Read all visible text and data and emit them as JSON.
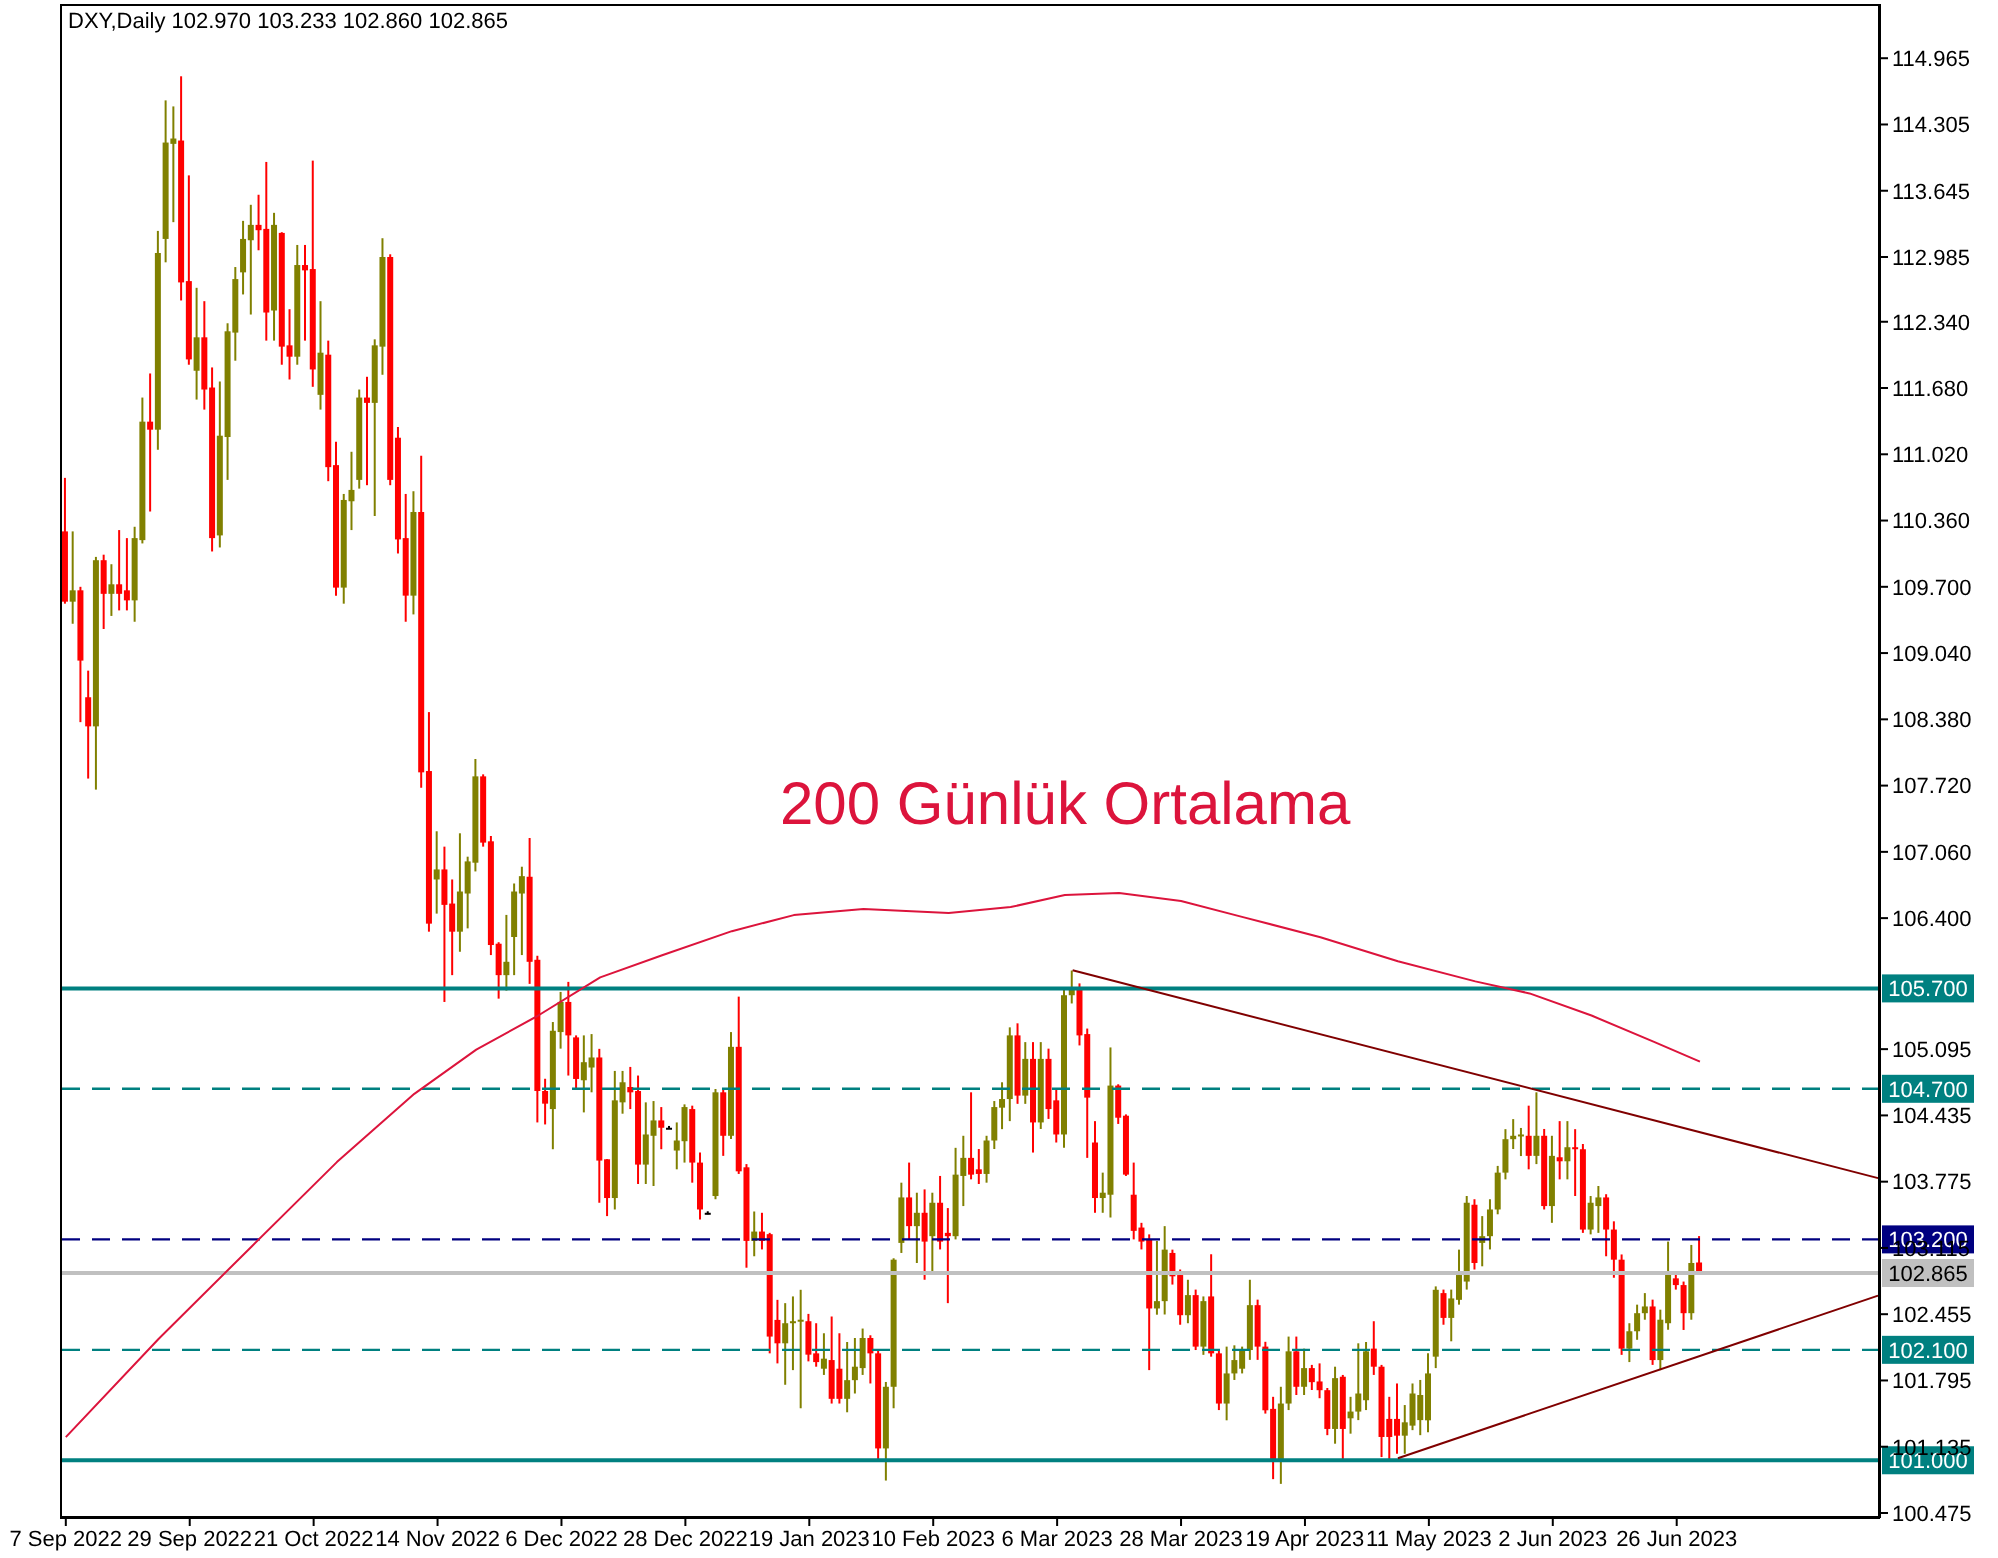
{
  "chart_data": {
    "type": "candlestick",
    "title": "DXY,Daily 102.970 103.233 102.860 102.865",
    "categories": [
      "7 Sep 2022",
      null,
      null,
      null,
      null,
      null,
      null,
      null,
      null,
      null,
      null,
      null,
      null,
      null,
      null,
      null,
      "29 Sep 2022",
      null,
      null,
      null,
      null,
      null,
      null,
      null,
      null,
      null,
      null,
      null,
      null,
      null,
      null,
      null,
      "21 Oct 2022",
      null,
      null,
      null,
      null,
      null,
      null,
      null,
      null,
      null,
      null,
      null,
      null,
      null,
      null,
      null,
      "14 Nov 2022",
      null,
      null,
      null,
      null,
      null,
      null,
      null,
      null,
      null,
      null,
      null,
      null,
      null,
      null,
      null,
      "6 Dec 2022",
      null,
      null,
      null,
      null,
      null,
      null,
      null,
      null,
      null,
      null,
      null,
      null,
      null,
      null,
      null,
      "28 Dec 2022",
      null,
      null,
      null,
      null,
      null,
      null,
      null,
      null,
      null,
      null,
      null,
      null,
      null,
      null,
      null,
      "19 Jan 2023",
      null,
      null,
      null,
      null,
      null,
      null,
      null,
      null,
      null,
      null,
      null,
      null,
      null,
      null,
      null,
      "10 Feb 2023",
      null,
      null,
      null,
      null,
      null,
      null,
      null,
      null,
      null,
      null,
      null,
      null,
      null,
      null,
      null,
      "6 Mar 2023",
      null,
      null,
      null,
      null,
      null,
      null,
      null,
      null,
      null,
      null,
      null,
      null,
      null,
      null,
      null,
      "28 Mar 2023",
      null,
      null,
      null,
      null,
      null,
      null,
      null,
      null,
      null,
      null,
      null,
      null,
      null,
      null,
      null,
      "19 Apr 2023",
      null,
      null,
      null,
      null,
      null,
      null,
      null,
      null,
      null,
      null,
      null,
      null,
      null,
      null,
      null,
      "11 May 2023",
      null,
      null,
      null,
      null,
      null,
      null,
      null,
      null,
      null,
      null,
      null,
      null,
      null,
      null,
      null,
      "2 Jun 2023",
      null,
      null,
      null,
      null,
      null,
      null,
      null,
      null,
      null,
      null,
      null,
      null,
      null,
      null,
      null,
      "26 Jun 2023",
      null,
      null,
      null,
      null,
      null,
      null,
      null,
      null,
      null,
      null,
      null,
      null,
      null,
      null,
      null,
      null,
      null,
      null,
      null,
      null,
      null,
      null,
      null,
      null,
      null,
      null
    ],
    "ohlc": [
      [
        110.252,
        110.785,
        109.532,
        109.552
      ],
      [
        109.552,
        110.252,
        109.332,
        109.665
      ],
      [
        109.665,
        109.7,
        108.352,
        108.965
      ],
      [
        108.6,
        108.865,
        107.79,
        108.31
      ],
      [
        108.31,
        109.998,
        107.68,
        109.965
      ],
      [
        109.965,
        110.02,
        109.28,
        109.63
      ],
      [
        109.63,
        109.925,
        109.41,
        109.725
      ],
      [
        109.725,
        110.265,
        109.465,
        109.63
      ],
      [
        109.665,
        110.185,
        109.465,
        109.565
      ],
      [
        109.565,
        110.298,
        109.352,
        110.185
      ],
      [
        110.165,
        111.585,
        110.132,
        111.345
      ],
      [
        111.345,
        111.825,
        110.45,
        111.265
      ],
      [
        111.265,
        113.245,
        111.065,
        113.025
      ],
      [
        113.165,
        114.545,
        112.932,
        114.125
      ],
      [
        114.112,
        114.485,
        113.332,
        114.165
      ],
      [
        114.145,
        114.785,
        112.552,
        112.732
      ],
      [
        112.745,
        113.798,
        111.912,
        111.965
      ],
      [
        111.852,
        112.678,
        111.565,
        112.185
      ],
      [
        112.185,
        112.545,
        111.465,
        111.665
      ],
      [
        111.685,
        111.885,
        110.052,
        110.185
      ],
      [
        110.212,
        111.745,
        110.092,
        111.205
      ],
      [
        111.192,
        112.325,
        110.765,
        112.245
      ],
      [
        112.232,
        112.885,
        111.952,
        112.765
      ],
      [
        112.832,
        113.345,
        112.612,
        113.165
      ],
      [
        113.152,
        113.505,
        112.412,
        113.305
      ],
      [
        113.305,
        113.605,
        113.052,
        113.252
      ],
      [
        113.265,
        113.932,
        112.152,
        112.432
      ],
      [
        112.452,
        113.425,
        112.152,
        113.305
      ],
      [
        113.225,
        113.232,
        111.912,
        112.092
      ],
      [
        112.105,
        112.465,
        111.765,
        111.992
      ],
      [
        111.992,
        113.105,
        111.912,
        112.905
      ],
      [
        112.905,
        113.105,
        112.152,
        112.852
      ],
      [
        112.865,
        113.945,
        111.692,
        111.865
      ],
      [
        111.612,
        112.545,
        111.465,
        112.032
      ],
      [
        112.012,
        112.152,
        110.752,
        110.892
      ],
      [
        110.912,
        111.145,
        109.612,
        109.692
      ],
      [
        109.692,
        110.625,
        109.532,
        110.565
      ],
      [
        110.552,
        111.045,
        110.265,
        110.665
      ],
      [
        110.765,
        111.665,
        110.678,
        111.585
      ],
      [
        111.585,
        111.792,
        110.712,
        111.532
      ],
      [
        111.532,
        112.165,
        110.405,
        112.105
      ],
      [
        112.092,
        113.172,
        111.812,
        112.985
      ],
      [
        112.985,
        113.012,
        110.712,
        110.765
      ],
      [
        111.185,
        111.292,
        110.032,
        110.172
      ],
      [
        110.185,
        110.625,
        109.352,
        109.612
      ],
      [
        109.612,
        110.652,
        109.425,
        110.445
      ],
      [
        110.445,
        111.005,
        107.698,
        107.852
      ],
      [
        107.865,
        108.452,
        106.265,
        106.345
      ],
      [
        106.785,
        107.265,
        106.445,
        106.885
      ],
      [
        106.885,
        107.112,
        105.565,
        106.532
      ],
      [
        106.545,
        106.785,
        105.832,
        106.265
      ],
      [
        106.265,
        107.245,
        106.065,
        106.665
      ],
      [
        106.645,
        107.012,
        106.298,
        106.965
      ],
      [
        106.952,
        107.985,
        106.865,
        107.812
      ],
      [
        107.812,
        107.832,
        107.112,
        107.152
      ],
      [
        107.165,
        107.218,
        106.032,
        106.132
      ],
      [
        106.145,
        106.16,
        105.598,
        105.832
      ],
      [
        105.832,
        106.432,
        105.678,
        105.965
      ],
      [
        106.212,
        106.745,
        105.832,
        106.665
      ],
      [
        106.645,
        106.912,
        106.032,
        106.818
      ],
      [
        106.812,
        107.198,
        105.745,
        105.965
      ],
      [
        105.985,
        106.025,
        104.365,
        104.678
      ],
      [
        104.678,
        104.8,
        104.345,
        104.552
      ],
      [
        104.498,
        105.365,
        104.098,
        105.278
      ],
      [
        105.265,
        105.665,
        105.1,
        105.565
      ],
      [
        105.565,
        105.765,
        104.832,
        105.232
      ],
      [
        105.212,
        105.232,
        104.698,
        104.798
      ],
      [
        104.785,
        105.232,
        104.465,
        104.965
      ],
      [
        104.912,
        105.245,
        104.665,
        105.012
      ],
      [
        105.012,
        105.098,
        103.565,
        103.985
      ],
      [
        103.998,
        104.0,
        103.432,
        103.612
      ],
      [
        103.612,
        104.878,
        103.498,
        104.585
      ],
      [
        104.565,
        104.878,
        104.452,
        104.765
      ],
      [
        104.718,
        104.918,
        104.498,
        104.665
      ],
      [
        104.678,
        104.832,
        103.752,
        103.945
      ],
      [
        103.945,
        104.565,
        103.752,
        104.245
      ],
      [
        104.232,
        104.578,
        103.732,
        104.385
      ],
      [
        104.385,
        104.518,
        104.098,
        104.312
      ],
      [
        104.312,
        104.33,
        104.3,
        104.312
      ],
      [
        104.085,
        104.365,
        103.898,
        104.185
      ],
      [
        104.178,
        104.545,
        103.965,
        104.518
      ],
      [
        104.498,
        104.532,
        103.765,
        103.965
      ],
      [
        103.965,
        104.065,
        103.398,
        103.498
      ],
      [
        103.465,
        103.48,
        103.45,
        103.465
      ],
      [
        103.632,
        104.698,
        103.6,
        104.665
      ],
      [
        104.665,
        104.698,
        104.032,
        104.232
      ],
      [
        104.232,
        105.265,
        104.2,
        105.118
      ],
      [
        105.118,
        105.618,
        103.852,
        103.878
      ],
      [
        103.918,
        103.95,
        102.918,
        103.185
      ],
      [
        103.185,
        103.478,
        103.032,
        103.278
      ],
      [
        103.278,
        103.465,
        103.1,
        103.185
      ],
      [
        103.252,
        103.265,
        102.065,
        102.232
      ],
      [
        102.398,
        102.598,
        101.965,
        102.165
      ],
      [
        102.165,
        102.565,
        101.752,
        102.365
      ],
      [
        102.365,
        102.632,
        101.898,
        102.385
      ],
      [
        102.385,
        102.698,
        101.518,
        102.4
      ],
      [
        102.385,
        102.458,
        101.985,
        102.052
      ],
      [
        102.065,
        102.365,
        101.932,
        101.978
      ],
      [
        101.912,
        102.265,
        101.85,
        102.012
      ],
      [
        101.998,
        102.432,
        101.565,
        101.612
      ],
      [
        101.912,
        102.265,
        101.565,
        101.612
      ],
      [
        101.612,
        102.178,
        101.478,
        101.798
      ],
      [
        101.798,
        102.218,
        101.665,
        101.932
      ],
      [
        101.918,
        102.312,
        101.85,
        102.218
      ],
      [
        102.218,
        102.245,
        101.765,
        102.065
      ],
      [
        102.065,
        102.1,
        101.012,
        101.118
      ],
      [
        101.118,
        101.78,
        100.798,
        101.732
      ],
      [
        101.732,
        103.012,
        101.518,
        102.998
      ],
      [
        103.165,
        103.765,
        103.065,
        103.618
      ],
      [
        103.618,
        103.965,
        103.2,
        103.332
      ],
      [
        103.332,
        103.665,
        102.965,
        103.465
      ],
      [
        103.465,
        103.698,
        102.798,
        103.178
      ],
      [
        103.232,
        103.665,
        102.865,
        103.565
      ],
      [
        103.565,
        103.832,
        103.1,
        103.178
      ],
      [
        103.265,
        103.512,
        102.565,
        103.232
      ],
      [
        103.232,
        104.112,
        103.2,
        103.845
      ],
      [
        103.832,
        104.232,
        103.532,
        104.012
      ],
      [
        104.012,
        104.665,
        103.798,
        103.845
      ],
      [
        103.898,
        104.1,
        103.752,
        103.852
      ],
      [
        103.852,
        104.232,
        103.765,
        104.185
      ],
      [
        104.185,
        104.578,
        104.1,
        104.518
      ],
      [
        104.512,
        104.765,
        104.298,
        104.598
      ],
      [
        104.598,
        105.312,
        104.378,
        105.232
      ],
      [
        105.232,
        105.352,
        104.55,
        104.632
      ],
      [
        104.632,
        105.165,
        104.55,
        104.998
      ],
      [
        104.998,
        105.165,
        104.065,
        104.365
      ],
      [
        104.365,
        105.165,
        104.3,
        104.998
      ],
      [
        104.998,
        105.1,
        104.4,
        104.498
      ],
      [
        104.585,
        104.7,
        104.165,
        104.245
      ],
      [
        104.245,
        105.698,
        104.112,
        105.632
      ],
      [
        105.632,
        105.878,
        105.55,
        105.712
      ],
      [
        105.698,
        105.75,
        105.132,
        105.232
      ],
      [
        105.245,
        105.3,
        104.012,
        104.612
      ],
      [
        104.165,
        104.378,
        103.465,
        103.612
      ],
      [
        103.612,
        103.865,
        103.465,
        103.665
      ],
      [
        103.645,
        105.112,
        103.418,
        104.732
      ],
      [
        104.732,
        104.745,
        104.35,
        104.412
      ],
      [
        104.432,
        104.445,
        103.832,
        103.845
      ],
      [
        103.645,
        103.965,
        103.2,
        103.285
      ],
      [
        103.318,
        103.365,
        103.1,
        103.178
      ],
      [
        103.198,
        103.25,
        101.898,
        102.512
      ],
      [
        102.512,
        103.185,
        102.45,
        102.585
      ],
      [
        102.585,
        103.332,
        102.452,
        103.098
      ],
      [
        103.065,
        103.098,
        102.75,
        102.832
      ],
      [
        102.845,
        102.9,
        102.35,
        102.445
      ],
      [
        102.445,
        102.798,
        102.365,
        102.645
      ],
      [
        102.645,
        102.7,
        102.098,
        102.132
      ],
      [
        102.132,
        102.632,
        102.05,
        102.585
      ],
      [
        102.632,
        103.052,
        102.032,
        102.065
      ],
      [
        102.065,
        102.1,
        101.5,
        101.565
      ],
      [
        101.565,
        102.132,
        101.398,
        101.865
      ],
      [
        101.865,
        102.145,
        101.8,
        101.998
      ],
      [
        101.912,
        102.132,
        101.865,
        102.098
      ],
      [
        102.098,
        102.798,
        102.0,
        102.545
      ],
      [
        102.545,
        102.6,
        102.0,
        102.132
      ],
      [
        102.132,
        102.18,
        101.465,
        101.498
      ],
      [
        101.512,
        101.632,
        100.812,
        100.998
      ],
      [
        100.998,
        101.732,
        100.765,
        101.565
      ],
      [
        101.565,
        102.232,
        101.5,
        102.085
      ],
      [
        102.085,
        102.232,
        101.65,
        101.732
      ],
      [
        101.732,
        102.112,
        101.65,
        101.918
      ],
      [
        101.918,
        101.95,
        101.7,
        101.778
      ],
      [
        101.785,
        101.965,
        101.618,
        101.698
      ],
      [
        101.698,
        101.72,
        101.25,
        101.312
      ],
      [
        101.312,
        101.932,
        101.165,
        101.818
      ],
      [
        101.832,
        101.85,
        100.998,
        101.312
      ],
      [
        101.418,
        101.632,
        101.265,
        101.485
      ],
      [
        101.485,
        102.165,
        101.4,
        101.665
      ],
      [
        101.598,
        102.178,
        101.5,
        102.085
      ],
      [
        102.112,
        102.385,
        101.85,
        101.932
      ],
      [
        101.932,
        101.95,
        101.032,
        101.232
      ],
      [
        101.412,
        101.632,
        100.998,
        101.232
      ],
      [
        101.412,
        101.765,
        101.065,
        101.245
      ],
      [
        101.245,
        101.55,
        101.065,
        101.378
      ],
      [
        101.345,
        101.765,
        101.3,
        101.665
      ],
      [
        101.4,
        101.8,
        101.25,
        101.65
      ],
      [
        101.398,
        102.065,
        101.278,
        101.865
      ],
      [
        102.032,
        102.732,
        101.918,
        102.698
      ],
      [
        102.665,
        102.7,
        102.35,
        102.418
      ],
      [
        102.418,
        102.7,
        102.185,
        102.612
      ],
      [
        102.598,
        103.098,
        102.55,
        102.845
      ],
      [
        102.78,
        103.632,
        102.7,
        103.565
      ],
      [
        103.545,
        103.6,
        102.9,
        102.965
      ],
      [
        103.165,
        103.432,
        102.932,
        103.232
      ],
      [
        103.232,
        103.6,
        103.1,
        103.498
      ],
      [
        103.498,
        103.932,
        103.45,
        103.865
      ],
      [
        103.865,
        104.298,
        103.798,
        104.198
      ],
      [
        104.198,
        104.398,
        104.1,
        104.232
      ],
      [
        104.232,
        104.31,
        104.03,
        104.245
      ],
      [
        104.232,
        104.532,
        103.898,
        104.032
      ],
      [
        104.032,
        104.665,
        103.95,
        104.232
      ],
      [
        104.232,
        104.3,
        103.498,
        103.532
      ],
      [
        103.532,
        104.232,
        103.365,
        104.032
      ],
      [
        104.018,
        104.378,
        103.798,
        103.978
      ],
      [
        103.978,
        104.378,
        103.798,
        104.118
      ],
      [
        104.118,
        104.298,
        103.632,
        104.098
      ],
      [
        104.098,
        104.15,
        103.265,
        103.298
      ],
      [
        103.298,
        103.632,
        103.25,
        103.565
      ],
      [
        103.532,
        103.732,
        103.265,
        103.618
      ],
      [
        103.618,
        103.65,
        103.032,
        103.298
      ],
      [
        103.298,
        103.38,
        102.818,
        102.998
      ],
      [
        102.998,
        103.05,
        102.05,
        102.112
      ],
      [
        102.112,
        102.365,
        101.978,
        102.285
      ],
      [
        102.285,
        102.55,
        102.2,
        102.465
      ],
      [
        102.465,
        102.665,
        102.4,
        102.532
      ],
      [
        102.532,
        102.6,
        101.95,
        101.998
      ],
      [
        101.998,
        102.5,
        101.898,
        102.4
      ],
      [
        102.365,
        103.178,
        102.3,
        102.865
      ],
      [
        102.812,
        102.865,
        102.7,
        102.745
      ],
      [
        102.745,
        102.78,
        102.298,
        102.465
      ],
      [
        102.465,
        103.145,
        102.4,
        102.965
      ],
      [
        102.97,
        103.233,
        102.86,
        102.865
      ],
      null,
      null,
      null,
      null,
      null,
      null,
      null,
      null,
      null,
      null,
      null,
      null,
      null,
      null,
      null,
      null,
      null,
      null,
      null,
      null,
      null,
      null,
      null
    ],
    "colors": [
      "#ff0000",
      "#808000",
      "#ff0000",
      "#ff0000",
      "#808000",
      "#ff0000",
      "#808000",
      "#ff0000",
      "#ff0000",
      "#808000",
      "#808000",
      "#ff0000",
      "#808000",
      "#808000",
      "#808000",
      "#ff0000",
      "#ff0000",
      "#808000",
      "#ff0000",
      "#ff0000",
      "#808000",
      "#808000",
      "#808000",
      "#808000",
      "#808000",
      "#ff0000",
      "#ff0000",
      "#808000",
      "#ff0000",
      "#ff0000",
      "#808000",
      "#ff0000",
      "#ff0000",
      "#808000",
      "#ff0000",
      "#ff0000",
      "#808000",
      "#808000",
      "#808000",
      "#ff0000",
      "#808000",
      "#808000",
      "#ff0000",
      "#ff0000",
      "#ff0000",
      "#808000",
      "#ff0000",
      "#ff0000",
      "#808000",
      "#ff0000",
      "#ff0000",
      "#808000",
      "#808000",
      "#808000",
      "#ff0000",
      "#ff0000",
      "#ff0000",
      "#808000",
      "#808000",
      "#808000",
      "#ff0000",
      "#ff0000",
      "#ff0000",
      "#808000",
      "#808000",
      "#ff0000",
      "#ff0000",
      "#808000",
      "#808000",
      "#ff0000",
      "#ff0000",
      "#808000",
      "#808000",
      "#ff0000",
      "#ff0000",
      "#808000",
      "#808000",
      "#ff0000",
      "#000000",
      "#808000",
      "#808000",
      "#ff0000",
      "#ff0000",
      "#000000",
      "#808000",
      "#ff0000",
      "#808000",
      "#ff0000",
      "#ff0000",
      "#808000",
      "#ff0000",
      "#ff0000",
      "#ff0000",
      "#808000",
      "#808000",
      "#808000",
      "#ff0000",
      "#ff0000",
      "#808000",
      "#ff0000",
      "#ff0000",
      "#808000",
      "#808000",
      "#808000",
      "#ff0000",
      "#ff0000",
      "#808000",
      "#808000",
      "#808000",
      "#ff0000",
      "#808000",
      "#ff0000",
      "#808000",
      "#ff0000",
      "#ff0000",
      "#808000",
      "#808000",
      "#ff0000",
      "#ff0000",
      "#808000",
      "#808000",
      "#808000",
      "#808000",
      "#ff0000",
      "#808000",
      "#ff0000",
      "#808000",
      "#ff0000",
      "#ff0000",
      "#808000",
      "#808000",
      "#ff0000",
      "#ff0000",
      "#ff0000",
      "#808000",
      "#808000",
      "#ff0000",
      "#ff0000",
      "#ff0000",
      "#ff0000",
      "#ff0000",
      "#808000",
      "#808000",
      "#ff0000",
      "#ff0000",
      "#808000",
      "#ff0000",
      "#808000",
      "#ff0000",
      "#ff0000",
      "#808000",
      "#808000",
      "#808000",
      "#808000",
      "#ff0000",
      "#ff0000",
      "#ff0000",
      "#808000",
      "#808000",
      "#ff0000",
      "#808000",
      "#ff0000",
      "#ff0000",
      "#ff0000",
      "#808000",
      "#ff0000",
      "#808000",
      "#808000",
      "#808000",
      "#ff0000",
      "#ff0000",
      "#ff0000",
      "#ff0000",
      "#808000",
      "#808000",
      "#808000",
      "#808000",
      "#808000",
      "#ff0000",
      "#808000",
      "#808000",
      "#808000",
      "#ff0000",
      "#808000",
      "#808000",
      "#808000",
      "#808000",
      "#808000",
      "#808000",
      "#ff0000",
      "#808000",
      "#ff0000",
      "#808000",
      "#ff0000",
      "#808000",
      "#ff0000",
      "#ff0000",
      "#808000",
      "#808000",
      "#ff0000",
      "#ff0000",
      "#ff0000",
      "#808000",
      "#808000",
      "#808000",
      "#ff0000",
      "#808000",
      "#808000",
      "#ff0000",
      "#ff0000",
      "#808000",
      "#ff0000",
      null,
      null,
      null,
      null,
      null,
      null,
      null,
      null,
      null,
      null,
      null,
      null,
      null,
      null,
      null,
      null,
      null,
      null,
      null,
      null,
      null,
      null,
      null
    ],
    "series": [
      {
        "type": "line",
        "name": "200 Günlük Ortalama",
        "color": "#dc143c",
        "values": [
          101.23,
          null,
          null,
          null,
          null,
          null,
          null,
          null,
          null,
          null,
          null,
          null,
          102.21,
          null,
          null,
          null,
          null,
          null,
          null,
          null,
          null,
          null,
          null,
          null,
          103.13,
          null,
          null,
          null,
          null,
          null,
          null,
          null,
          null,
          null,
          null,
          103.97,
          null,
          null,
          null,
          null,
          null,
          null,
          null,
          null,
          null,
          104.65,
          null,
          null,
          null,
          null,
          null,
          null,
          null,
          105.09,
          null,
          null,
          null,
          null,
          null,
          null,
          null,
          105.43,
          null,
          null,
          null,
          null,
          null,
          null,
          null,
          105.81,
          null,
          null,
          null,
          null,
          null,
          null,
          null,
          106.03,
          null,
          null,
          null,
          null,
          null,
          null,
          null,
          null,
          106.27,
          null,
          null,
          null,
          null,
          null,
          null,
          null,
          106.43,
          null,
          null,
          null,
          null,
          null,
          null,
          null,
          null,
          106.49,
          null,
          null,
          null,
          null,
          null,
          null,
          null,
          null,
          null,
          null,
          106.45,
          null,
          null,
          null,
          null,
          null,
          null,
          null,
          106.51,
          null,
          null,
          null,
          null,
          null,
          null,
          106.63,
          null,
          null,
          null,
          null,
          null,
          null,
          106.65,
          null,
          null,
          null,
          null,
          null,
          null,
          null,
          106.57,
          null,
          null,
          null,
          null,
          null,
          null,
          null,
          106.41,
          null,
          null,
          null,
          null,
          null,
          null,
          null,
          null,
          null,
          106.21,
          null,
          null,
          null,
          null,
          null,
          null,
          null,
          null,
          null,
          105.97,
          null,
          null,
          null,
          null,
          null,
          null,
          null,
          null,
          null,
          105.77,
          null,
          null,
          null,
          null,
          null,
          null,
          105.65,
          null,
          null,
          null,
          null,
          null,
          null,
          null,
          105.43,
          null,
          null,
          null,
          null,
          null,
          null,
          null,
          105.17,
          null,
          null,
          null,
          null,
          null,
          104.97,
          null,
          null,
          null,
          null,
          null,
          null,
          null,
          null,
          null,
          null,
          null,
          null,
          null,
          null,
          null,
          null,
          null,
          null,
          null,
          null,
          null,
          null,
          null
        ]
      },
      {
        "type": "line",
        "color": "#800000",
        "values": [
          null,
          null,
          null,
          null,
          null,
          null,
          null,
          null,
          null,
          null,
          null,
          null,
          null,
          null,
          null,
          null,
          null,
          null,
          null,
          null,
          null,
          null,
          null,
          null,
          null,
          null,
          null,
          null,
          null,
          null,
          null,
          null,
          null,
          null,
          null,
          null,
          null,
          null,
          null,
          null,
          null,
          null,
          null,
          null,
          null,
          null,
          null,
          null,
          null,
          null,
          null,
          null,
          null,
          null,
          null,
          null,
          null,
          null,
          null,
          null,
          null,
          null,
          null,
          null,
          null,
          null,
          null,
          null,
          null,
          null,
          null,
          null,
          null,
          null,
          null,
          null,
          null,
          null,
          null,
          null,
          null,
          null,
          null,
          null,
          null,
          null,
          null,
          null,
          null,
          null,
          null,
          null,
          null,
          null,
          null,
          null,
          null,
          null,
          null,
          null,
          null,
          null,
          null,
          null,
          null,
          null,
          null,
          null,
          null,
          null,
          null,
          null,
          null,
          null,
          null,
          null,
          null,
          null,
          null,
          null,
          null,
          null,
          null,
          null,
          null,
          null,
          null,
          null,
          null,
          null,
          105.88,
          null,
          null,
          null,
          null,
          null,
          null,
          null,
          null,
          null,
          null,
          null,
          null,
          null,
          null,
          null,
          null,
          null,
          null,
          null,
          null,
          null,
          null,
          null,
          null,
          null,
          null,
          null,
          null,
          null,
          null,
          null,
          null,
          null,
          null,
          null,
          null,
          null,
          null,
          null,
          null,
          null,
          null,
          null,
          null,
          null,
          null,
          null,
          null,
          null,
          null,
          null,
          null,
          null,
          null,
          null,
          null,
          null,
          null,
          null,
          null,
          null,
          null,
          null,
          null,
          null,
          null,
          null,
          null,
          null,
          null,
          null,
          null,
          null,
          null,
          null,
          null,
          null,
          null,
          null,
          null,
          null,
          null,
          null,
          null,
          null,
          null,
          null,
          null,
          null,
          null,
          null,
          null,
          null,
          null,
          null,
          null,
          null,
          null,
          null,
          null,
          null,
          null,
          null,
          103.81
        ]
      },
      {
        "type": "line",
        "color": "#800000",
        "values": [
          null,
          null,
          null,
          null,
          null,
          null,
          null,
          null,
          null,
          null,
          null,
          null,
          null,
          null,
          null,
          null,
          null,
          null,
          null,
          null,
          null,
          null,
          null,
          null,
          null,
          null,
          null,
          null,
          null,
          null,
          null,
          null,
          null,
          null,
          null,
          null,
          null,
          null,
          null,
          null,
          null,
          null,
          null,
          null,
          null,
          null,
          null,
          null,
          null,
          null,
          null,
          null,
          null,
          null,
          null,
          null,
          null,
          null,
          null,
          null,
          null,
          null,
          null,
          null,
          null,
          null,
          null,
          null,
          null,
          null,
          null,
          null,
          null,
          null,
          null,
          null,
          null,
          null,
          null,
          null,
          null,
          null,
          null,
          null,
          null,
          null,
          null,
          null,
          null,
          null,
          null,
          null,
          null,
          null,
          null,
          null,
          null,
          null,
          null,
          null,
          null,
          null,
          null,
          null,
          null,
          null,
          null,
          null,
          null,
          null,
          null,
          null,
          null,
          null,
          null,
          null,
          null,
          null,
          null,
          null,
          null,
          null,
          null,
          null,
          null,
          null,
          null,
          null,
          null,
          null,
          null,
          null,
          null,
          null,
          null,
          null,
          null,
          null,
          null,
          null,
          null,
          null,
          null,
          null,
          null,
          null,
          null,
          null,
          null,
          null,
          null,
          null,
          null,
          null,
          null,
          null,
          null,
          null,
          null,
          null,
          null,
          null,
          null,
          null,
          null,
          null,
          null,
          null,
          null,
          null,
          null,
          null,
          101.02,
          null,
          null,
          null,
          null,
          null,
          null,
          null,
          null,
          null,
          null,
          null,
          null,
          null,
          null,
          null,
          null,
          null,
          null,
          null,
          null,
          null,
          null,
          null,
          null,
          null,
          null,
          null,
          null,
          null,
          null,
          null,
          null,
          null,
          null,
          null,
          null,
          null,
          null,
          null,
          null,
          null,
          null,
          null,
          null,
          null,
          null,
          null,
          null,
          null,
          null,
          null,
          null,
          null,
          null,
          null,
          null,
          null,
          null,
          null,
          null,
          null,
          102.64
        ]
      }
    ],
    "ylim": [
      100.425,
      115.505
    ],
    "yticks": [
      100.475,
      101.135,
      101.795,
      102.455,
      103.115,
      103.775,
      104.435,
      105.095,
      {
        "value": 106.4,
        "label": "106.400"
      },
      {
        "value": 107.06,
        "label": "107.060"
      },
      {
        "value": 107.72,
        "label": "107.720"
      },
      {
        "value": 108.38,
        "label": "108.380"
      },
      {
        "value": 109.04,
        "label": "109.040"
      },
      {
        "value": 109.7,
        "label": "109.700"
      },
      {
        "value": 110.36,
        "label": "110.360"
      },
      {
        "value": 111.02,
        "label": "111.020"
      },
      {
        "value": 111.68,
        "label": "111.680"
      },
      {
        "value": 112.34,
        "label": "112.340"
      },
      112.985,
      113.645,
      114.305,
      114.965
    ],
    "ref_lines": [
      {
        "axis": "y",
        "value": 105.7,
        "label": "105.700",
        "color": "#008080",
        "line_style": "solid"
      },
      {
        "axis": "y",
        "value": 104.7,
        "label": "104.700",
        "color": "#008080",
        "line_style": "dashed"
      },
      {
        "axis": "y",
        "value": 103.2,
        "label": "103.200",
        "color": "#000080",
        "line_style": "dashed"
      },
      {
        "axis": "y",
        "value": 102.865,
        "label": "102.865",
        "color": "#c0c0c0",
        "line_style": "solid"
      },
      {
        "axis": "y",
        "value": 102.1,
        "label": "102.100",
        "color": "#008080",
        "line_style": "dashed"
      },
      {
        "axis": "y",
        "value": 101.0,
        "label": "101.000",
        "color": "#008080",
        "line_style": "solid"
      }
    ]
  }
}
